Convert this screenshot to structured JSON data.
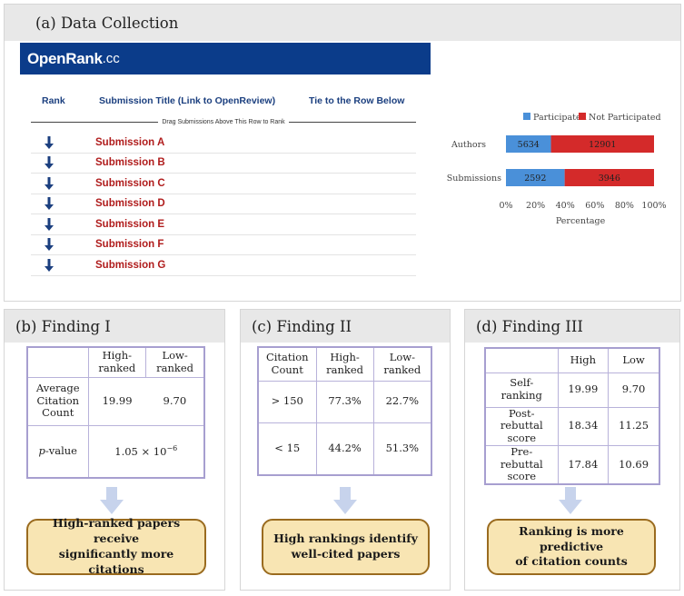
{
  "panel_a": {
    "title": "(a) Data Collection",
    "openrank": {
      "brand": "OpenRank",
      "tld": ".cc",
      "col_rank": "Rank",
      "col_title": "Submission Title (Link to OpenReview)",
      "col_tie": "Tie to the Row Below",
      "drag_hint": "Drag Submissions Above This Row to Rank",
      "submissions": [
        "Submission A",
        "Submission B",
        "Submission C",
        "Submission D",
        "Submission E",
        "Submission F",
        "Submission G"
      ]
    }
  },
  "chart_data": {
    "type": "bar",
    "orientation": "horizontal",
    "stacked": "percent",
    "categories": [
      "Authors",
      "Submissions"
    ],
    "series": [
      {
        "name": "Participated",
        "values": [
          5634,
          2592
        ],
        "color": "#4a90d9"
      },
      {
        "name": "Not Participated",
        "values": [
          12901,
          3946
        ],
        "color": "#d42a2a"
      }
    ],
    "xlabel": "Percentage",
    "xlim": [
      0,
      100
    ],
    "xticks": [
      "0%",
      "20%",
      "40%",
      "60%",
      "80%",
      "100%"
    ],
    "legend": "top-right"
  },
  "finding1": {
    "title": "(b) Finding I",
    "headers": [
      "High-\nranked",
      "Low-\nranked"
    ],
    "row1_label": "Average\nCitation\nCount",
    "row1_values": [
      "19.99",
      "9.70"
    ],
    "row2_label_italic": "p",
    "row2_label_rest": "-value",
    "pvalue_base": "1.05 × 10",
    "pvalue_exp": "−6",
    "conclusion": "High-ranked papers receive\nsignificantly more citations"
  },
  "finding2": {
    "title": "(c) Finding II",
    "headers": [
      "Citation\nCount",
      "High-\nranked",
      "Low-\nranked"
    ],
    "rows": [
      [
        "> 150",
        "77.3%",
        "22.7%"
      ],
      [
        "< 15",
        "44.2%",
        "51.3%"
      ]
    ],
    "conclusion": "High rankings identify\nwell-cited papers"
  },
  "finding3": {
    "title": "(d) Finding III",
    "headers": [
      "",
      "High",
      "Low"
    ],
    "rows": [
      [
        "Self-\nranking",
        "19.99",
        "9.70"
      ],
      [
        "Post-rebuttal\nscore",
        "18.34",
        "11.25"
      ],
      [
        "Pre-rebuttal\nscore",
        "17.84",
        "10.69"
      ]
    ],
    "conclusion": "Ranking is more predictive\nof citation counts"
  },
  "colors": {
    "banner": "#0b3c8a",
    "header_text": "#1b3f7f",
    "submission_text": "#b01c1c",
    "table_border": "#a79fd0",
    "conclusion_bg": "#f8e5b3",
    "conclusion_border": "#9a6b1f",
    "arrow": "#c7d3ec"
  }
}
